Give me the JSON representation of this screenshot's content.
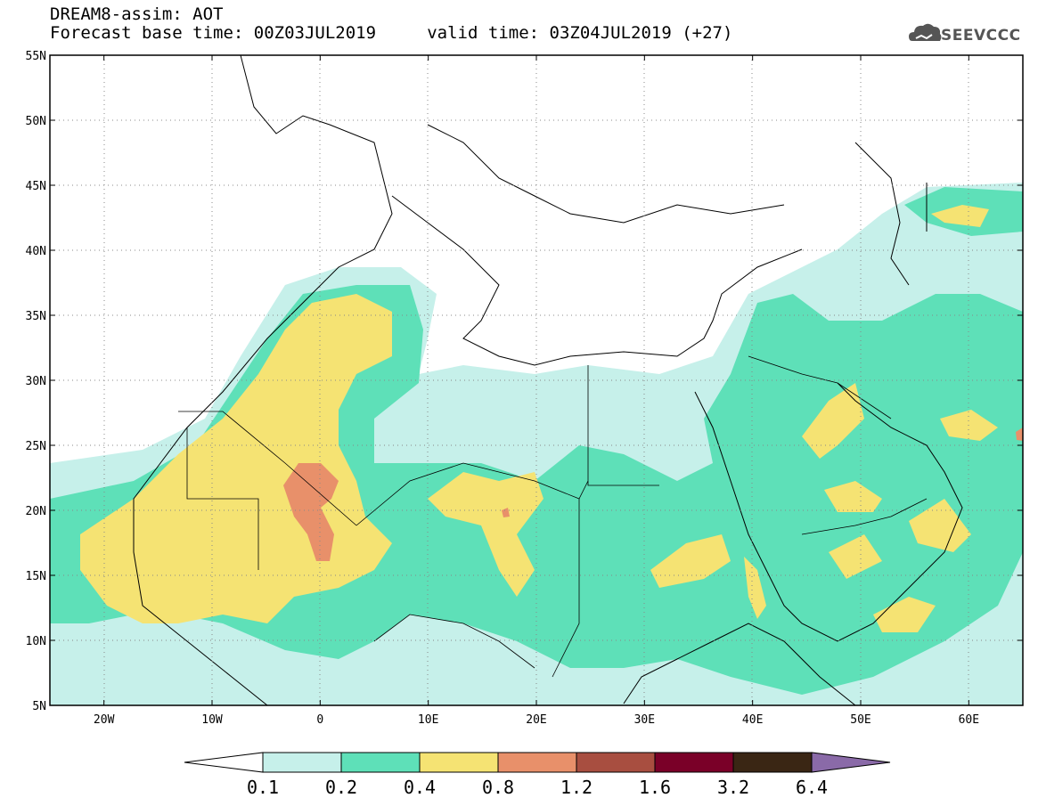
{
  "header": {
    "title_line1": "DREAM8-assim: AOT",
    "title_line2": "Forecast base time: 00Z03JUL2019     valid time: 03Z04JUL2019 (+27)",
    "logo_text": "SEEVCCC",
    "logo_icon": "cloud-icon"
  },
  "map": {
    "variable": "AOT",
    "lat_range": [
      5,
      55
    ],
    "lon_range": [
      -25,
      65
    ],
    "lat_ticks": [
      "55N",
      "50N",
      "45N",
      "40N",
      "35N",
      "30N",
      "25N",
      "20N",
      "15N",
      "10N",
      "5N"
    ],
    "lon_ticks": [
      "20W",
      "10W",
      "0",
      "10E",
      "20E",
      "30E",
      "40E",
      "50E",
      "60E"
    ],
    "lat_tick_values": [
      55,
      50,
      45,
      40,
      35,
      30,
      25,
      20,
      15,
      10,
      5
    ],
    "lon_tick_values": [
      -20,
      -10,
      0,
      10,
      20,
      30,
      40,
      50,
      60
    ],
    "gridlines": "dotted"
  },
  "colorbar": {
    "labels": [
      "0.1",
      "0.2",
      "0.4",
      "0.8",
      "1.2",
      "1.6",
      "3.2",
      "6.4"
    ],
    "colors": [
      "#c6f0ea",
      "#5ee0b8",
      "#f5e373",
      "#e8906a",
      "#a84e40",
      "#7a0028",
      "#3a2614",
      "#8a6aa8"
    ],
    "low_color": "#ffffff"
  }
}
